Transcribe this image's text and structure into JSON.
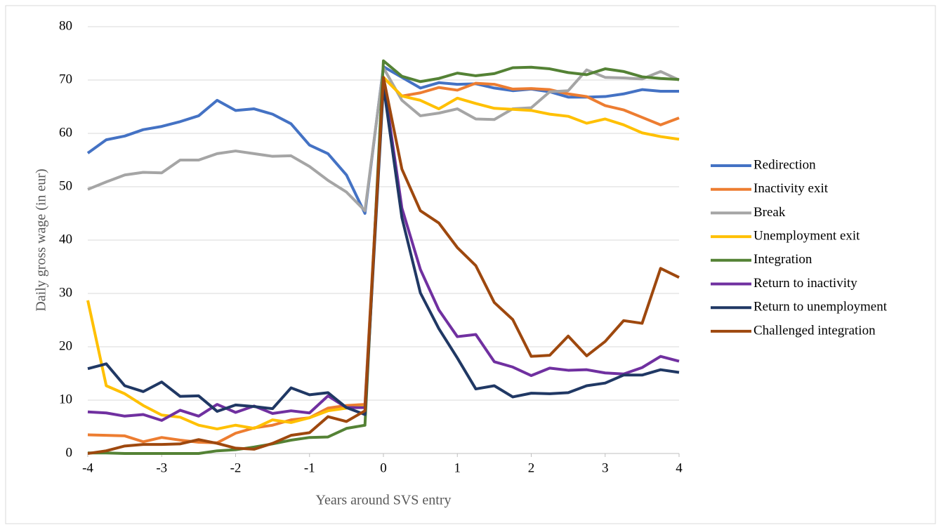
{
  "chart_data": {
    "type": "line",
    "xlabel": "Years around SVS entry",
    "ylabel": "Daily gross wage (in eur)",
    "x": [
      -4,
      -3.75,
      -3.5,
      -3.25,
      -3,
      -2.75,
      -2.5,
      -2.25,
      -2,
      -1.75,
      -1.5,
      -1.25,
      -1,
      -0.75,
      -0.5,
      -0.25,
      0,
      0.25,
      0.5,
      0.75,
      1,
      1.25,
      1.5,
      1.75,
      2,
      2.25,
      2.5,
      2.75,
      3,
      3.25,
      3.5,
      3.75,
      4
    ],
    "xlim": [
      -4,
      4
    ],
    "xticks": [
      -4,
      -3,
      -2,
      -1,
      0,
      1,
      2,
      3,
      4
    ],
    "ylim": [
      0,
      80
    ],
    "yticks": [
      0,
      10,
      20,
      30,
      40,
      50,
      60,
      70,
      80
    ],
    "grid": true,
    "legend": "right",
    "series": [
      {
        "name": "Redirection",
        "color": "#4472c4",
        "values": [
          56.3,
          58.8,
          59.5,
          60.7,
          61.3,
          62.2,
          63.3,
          66.2,
          64.3,
          64.6,
          63.6,
          61.8,
          57.8,
          56.2,
          52.2,
          45.0,
          72.5,
          70.5,
          68.5,
          69.5,
          69.2,
          69.3,
          68.5,
          68.0,
          68.3,
          67.8,
          66.8,
          66.8,
          66.9,
          67.4,
          68.2,
          67.9,
          67.9
        ]
      },
      {
        "name": "Inactivity exit",
        "color": "#ed7d31",
        "values": [
          3.5,
          3.4,
          3.3,
          2.2,
          3.0,
          2.5,
          2.1,
          2.0,
          3.8,
          4.8,
          5.3,
          6.3,
          6.7,
          8.5,
          9.0,
          9.2,
          70.5,
          67.0,
          67.6,
          68.6,
          68.1,
          69.4,
          69.2,
          68.3,
          68.4,
          68.2,
          67.4,
          66.9,
          65.2,
          64.4,
          63.0,
          61.6,
          62.9
        ]
      },
      {
        "name": "Break",
        "color": "#a5a5a5",
        "values": [
          49.5,
          50.9,
          52.2,
          52.7,
          52.6,
          55.0,
          55.0,
          56.2,
          56.7,
          56.2,
          55.7,
          55.8,
          53.8,
          51.2,
          49.0,
          45.5,
          72.3,
          66.2,
          63.3,
          63.8,
          64.6,
          62.7,
          62.6,
          64.6,
          64.8,
          67.8,
          68.0,
          71.9,
          70.5,
          70.4,
          70.2,
          71.6,
          70.0
        ]
      },
      {
        "name": "Unemployment exit",
        "color": "#ffc000",
        "values": [
          28.7,
          12.7,
          11.2,
          9.0,
          7.2,
          6.8,
          5.3,
          4.6,
          5.3,
          4.7,
          6.3,
          5.8,
          6.7,
          8.0,
          8.5,
          8.8,
          70.5,
          67.0,
          66.2,
          64.6,
          66.6,
          65.6,
          64.7,
          64.5,
          64.3,
          63.6,
          63.2,
          61.9,
          62.7,
          61.6,
          60.1,
          59.4,
          58.9
        ]
      },
      {
        "name": "Integration",
        "color": "#548235",
        "values": [
          0.1,
          0.1,
          0.0,
          0.0,
          0.0,
          0.0,
          0.0,
          0.5,
          0.7,
          1.2,
          1.8,
          2.5,
          3.0,
          3.1,
          4.7,
          5.3,
          73.6,
          70.7,
          69.7,
          70.3,
          71.3,
          70.8,
          71.2,
          72.3,
          72.4,
          72.1,
          71.4,
          71.0,
          72.1,
          71.6,
          70.6,
          70.3,
          70.1
        ]
      },
      {
        "name": "Return to inactivity",
        "color": "#7030a0",
        "values": [
          7.8,
          7.6,
          7.0,
          7.3,
          6.2,
          8.1,
          7.0,
          9.2,
          7.7,
          8.9,
          7.5,
          8.0,
          7.6,
          10.8,
          8.6,
          8.6,
          70.0,
          46.0,
          34.5,
          26.9,
          21.9,
          22.3,
          17.2,
          16.2,
          14.6,
          16.0,
          15.6,
          15.7,
          15.1,
          14.9,
          16.1,
          18.2,
          17.3
        ]
      },
      {
        "name": "Return to unemployment",
        "color": "#203864",
        "values": [
          15.9,
          16.8,
          12.7,
          11.6,
          13.4,
          10.7,
          10.8,
          7.9,
          9.1,
          8.8,
          8.4,
          12.3,
          11.0,
          11.4,
          8.6,
          7.3,
          69.0,
          44.2,
          30.1,
          23.4,
          17.9,
          12.1,
          12.7,
          10.6,
          11.3,
          11.2,
          11.4,
          12.7,
          13.2,
          14.7,
          14.7,
          15.7,
          15.2
        ]
      },
      {
        "name": "Challenged integration",
        "color": "#9e480e",
        "values": [
          0.0,
          0.5,
          1.4,
          1.7,
          1.7,
          1.8,
          2.6,
          1.9,
          1.0,
          0.8,
          1.9,
          3.4,
          3.9,
          6.9,
          6.0,
          8.0,
          70.5,
          53.3,
          45.5,
          43.2,
          38.6,
          35.2,
          28.3,
          25.1,
          18.2,
          18.4,
          22.0,
          18.3,
          21.0,
          24.9,
          24.4,
          34.7,
          33.0
        ]
      }
    ]
  }
}
